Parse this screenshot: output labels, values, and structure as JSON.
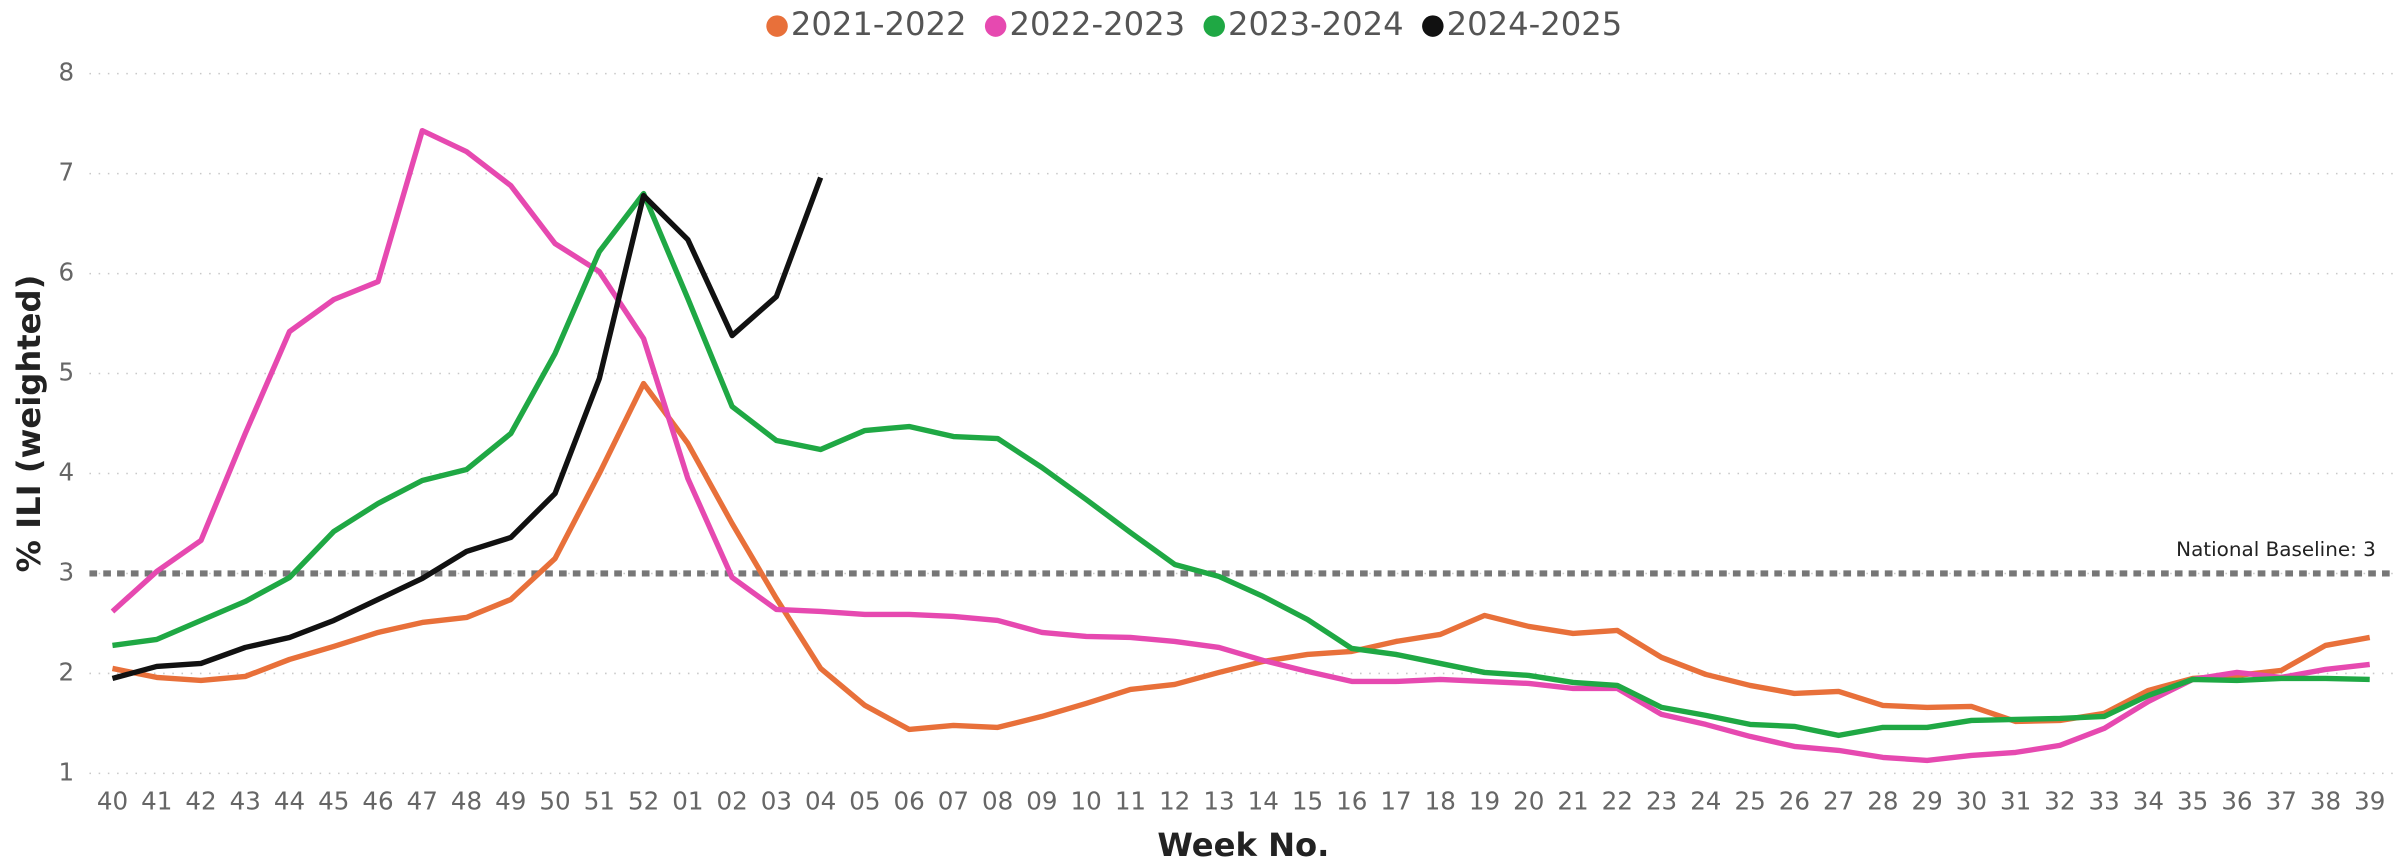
{
  "chart_data": {
    "type": "line",
    "x_label": "Week No.",
    "y_label": "% ILI (weighted)",
    "categories": [
      "40",
      "41",
      "42",
      "43",
      "44",
      "45",
      "46",
      "47",
      "48",
      "49",
      "50",
      "51",
      "52",
      "01",
      "02",
      "03",
      "04",
      "05",
      "06",
      "07",
      "08",
      "09",
      "10",
      "11",
      "12",
      "13",
      "14",
      "15",
      "16",
      "17",
      "18",
      "19",
      "20",
      "21",
      "22",
      "23",
      "24",
      "25",
      "26",
      "27",
      "28",
      "29",
      "30",
      "31",
      "32",
      "33",
      "34",
      "35",
      "36",
      "37",
      "38",
      "39"
    ],
    "ylim": [
      1,
      8
    ],
    "yticks": [
      1,
      2,
      3,
      4,
      5,
      6,
      7,
      8
    ],
    "grid": true,
    "legend": "top",
    "baseline": {
      "value": 3,
      "label": "National Baseline: 3",
      "color": "#777777"
    },
    "series": [
      {
        "name": "2021-2022",
        "color": "#e8703a",
        "values": [
          2.05,
          1.96,
          1.93,
          1.97,
          2.14,
          2.27,
          2.41,
          2.51,
          2.56,
          2.74,
          3.15,
          4.0,
          4.9,
          4.3,
          3.5,
          2.75,
          2.05,
          1.68,
          1.44,
          1.48,
          1.46,
          1.57,
          1.7,
          1.84,
          1.89,
          2.01,
          2.12,
          2.19,
          2.22,
          2.32,
          2.39,
          2.58,
          2.47,
          2.4,
          2.43,
          2.16,
          1.99,
          1.88,
          1.8,
          1.82,
          1.68,
          1.66,
          1.67,
          1.52,
          1.53,
          1.6,
          1.83,
          1.95,
          1.98,
          2.03,
          2.28,
          2.36
        ]
      },
      {
        "name": "2022-2023",
        "color": "#e649b0",
        "values": [
          2.62,
          3.02,
          3.33,
          4.4,
          5.42,
          5.74,
          5.92,
          7.43,
          7.22,
          6.88,
          6.3,
          6.02,
          5.35,
          3.95,
          2.96,
          2.64,
          2.62,
          2.59,
          2.59,
          2.57,
          2.53,
          2.41,
          2.37,
          2.36,
          2.32,
          2.26,
          2.13,
          2.02,
          1.92,
          1.92,
          1.94,
          1.92,
          1.9,
          1.85,
          1.85,
          1.59,
          1.49,
          1.37,
          1.27,
          1.23,
          1.16,
          1.13,
          1.18,
          1.21,
          1.28,
          1.45,
          1.72,
          1.94,
          2.01,
          1.96,
          2.04,
          2.09
        ]
      },
      {
        "name": "2023-2024",
        "color": "#1fa844",
        "values": [
          2.28,
          2.34,
          2.53,
          2.72,
          2.96,
          3.42,
          3.7,
          3.93,
          4.04,
          4.4,
          5.2,
          6.22,
          6.8,
          5.75,
          4.67,
          4.33,
          4.24,
          4.43,
          4.47,
          4.37,
          4.35,
          4.06,
          3.74,
          3.41,
          3.09,
          2.97,
          2.77,
          2.54,
          2.25,
          2.19,
          2.1,
          2.01,
          1.98,
          1.91,
          1.88,
          1.66,
          1.58,
          1.49,
          1.47,
          1.38,
          1.46,
          1.46,
          1.53,
          1.54,
          1.55,
          1.57,
          1.78,
          1.94,
          1.93,
          1.95,
          1.95,
          1.94
        ]
      },
      {
        "name": "2024-2025",
        "color": "#111111",
        "values": [
          1.95,
          2.07,
          2.1,
          2.26,
          2.36,
          2.53,
          2.74,
          2.95,
          3.22,
          3.36,
          3.8,
          4.95,
          6.78,
          6.34,
          5.38,
          5.77,
          6.96,
          null,
          null,
          null,
          null,
          null,
          null,
          null,
          null,
          null,
          null,
          null,
          null,
          null,
          null,
          null,
          null,
          null,
          null,
          null,
          null,
          null,
          null,
          null,
          null,
          null,
          null,
          null,
          null,
          null,
          null,
          null,
          null,
          null,
          null,
          null
        ]
      }
    ]
  }
}
